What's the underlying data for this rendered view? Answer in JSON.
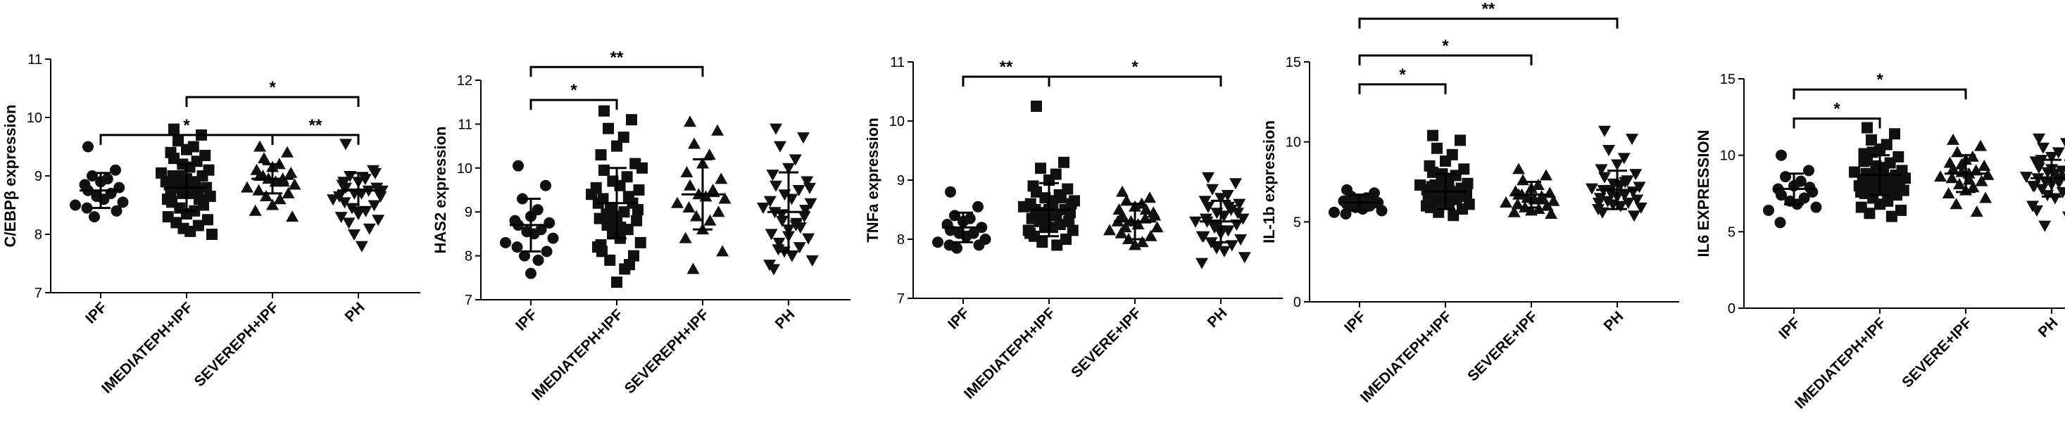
{
  "chart_data": [
    {
      "type": "scatter",
      "ylabel": "C/EBPβ expression",
      "ylim": [
        7,
        11
      ],
      "yticks": [
        7,
        8,
        9,
        10,
        11
      ],
      "categories": [
        "IPF",
        "IMEDIATEPH+IPF",
        "SEVEREPH+IPF",
        "PH"
      ],
      "marker_shapes": [
        "circle",
        "square",
        "triangle-up",
        "triangle-down"
      ],
      "series": [
        {
          "values": [
            9.5,
            9.1,
            9.0,
            8.95,
            8.9,
            8.85,
            8.8,
            8.75,
            8.7,
            8.65,
            8.6,
            8.55,
            8.5,
            8.45,
            8.4,
            8.3
          ]
        },
        {
          "values": [
            9.8,
            9.7,
            9.6,
            9.5,
            9.45,
            9.4,
            9.35,
            9.3,
            9.25,
            9.2,
            9.15,
            9.1,
            9.05,
            9.0,
            9.0,
            8.95,
            8.9,
            8.9,
            8.85,
            8.8,
            8.8,
            8.75,
            8.7,
            8.7,
            8.65,
            8.6,
            8.55,
            8.5,
            8.45,
            8.4,
            8.35,
            8.3,
            8.25,
            8.2,
            8.15,
            8.1,
            8.05,
            8.0,
            8.9,
            8.7,
            8.6,
            9.0,
            8.85,
            8.95
          ]
        },
        {
          "values": [
            9.5,
            9.4,
            9.3,
            9.2,
            9.15,
            9.1,
            9.05,
            9.0,
            8.95,
            8.95,
            8.9,
            8.85,
            8.8,
            8.75,
            8.7,
            8.65,
            8.6,
            8.5,
            8.4,
            8.3,
            9.0,
            8.9
          ]
        },
        {
          "values": [
            9.55,
            9.1,
            9.0,
            8.95,
            8.9,
            8.85,
            8.8,
            8.8,
            8.75,
            8.7,
            8.7,
            8.65,
            8.6,
            8.55,
            8.5,
            8.45,
            8.4,
            8.35,
            8.3,
            8.25,
            8.2,
            8.1,
            8.0,
            7.8,
            8.75,
            8.65,
            8.9,
            9.05
          ]
        }
      ],
      "mean": [
        8.75,
        8.8,
        8.95,
        8.75
      ],
      "sd": [
        0.3,
        0.4,
        0.25,
        0.3
      ],
      "significance": [
        {
          "from": 0,
          "to": 2,
          "label": "*",
          "y": 9.7
        },
        {
          "from": 2,
          "to": 3,
          "label": "**",
          "y": 9.7
        },
        {
          "from": 1,
          "to": 3,
          "label": "*",
          "y": 10.35
        }
      ]
    },
    {
      "type": "scatter",
      "ylabel": "HAS2 expression",
      "ylim": [
        7,
        12
      ],
      "yticks": [
        7,
        8,
        9,
        10,
        11,
        12
      ],
      "categories": [
        "IPF",
        "IMEDIATEPH+IPF",
        "SEVEREPH+IPF",
        "PH"
      ],
      "marker_shapes": [
        "circle",
        "square",
        "triangle-up",
        "triangle-down"
      ],
      "series": [
        {
          "values": [
            10.05,
            9.6,
            9.3,
            9.05,
            8.9,
            8.8,
            8.75,
            8.7,
            8.6,
            8.55,
            8.5,
            8.4,
            8.3,
            8.2,
            8.1,
            8.0,
            7.9,
            7.6
          ]
        },
        {
          "values": [
            11.3,
            11.1,
            10.9,
            10.7,
            10.5,
            10.3,
            10.1,
            9.95,
            9.8,
            9.7,
            9.6,
            9.5,
            9.4,
            9.3,
            9.2,
            9.1,
            9.0,
            8.9,
            8.85,
            8.8,
            8.7,
            8.6,
            8.5,
            8.4,
            8.3,
            8.2,
            8.1,
            8.0,
            7.9,
            7.7,
            7.4,
            9.2,
            9.05,
            8.95,
            9.35,
            8.75,
            8.65,
            10.0,
            9.55,
            8.25,
            7.8
          ]
        },
        {
          "values": [
            11.05,
            10.85,
            10.55,
            10.3,
            10.1,
            9.9,
            9.75,
            9.6,
            9.5,
            9.4,
            9.35,
            9.3,
            9.2,
            9.1,
            9.0,
            8.9,
            8.8,
            8.6,
            8.4,
            8.1,
            7.7,
            9.45
          ]
        },
        {
          "values": [
            10.9,
            10.7,
            10.5,
            10.2,
            10.0,
            9.85,
            9.7,
            9.6,
            9.5,
            9.4,
            9.3,
            9.2,
            9.1,
            9.0,
            8.9,
            8.8,
            8.7,
            8.6,
            8.5,
            8.4,
            8.3,
            8.2,
            8.1,
            8.0,
            7.9,
            7.8,
            7.7,
            9.05,
            8.95,
            8.75,
            8.45,
            9.25,
            9.55,
            8.15,
            8.65
          ]
        }
      ],
      "mean": [
        8.7,
        9.2,
        9.4,
        9.0
      ],
      "sd": [
        0.6,
        0.8,
        0.8,
        0.9
      ],
      "significance": [
        {
          "from": 0,
          "to": 1,
          "label": "*",
          "y": 11.55
        },
        {
          "from": 0,
          "to": 2,
          "label": "**",
          "y": 12.3
        }
      ]
    },
    {
      "type": "scatter",
      "ylabel": "TNFa expression",
      "ylim": [
        7,
        11
      ],
      "yticks": [
        7,
        8,
        9,
        10,
        11
      ],
      "categories": [
        "IPF",
        "IMEDIATEPH+IPF",
        "SEVERE+IPF",
        "PH"
      ],
      "marker_shapes": [
        "circle",
        "square",
        "triangle-up",
        "triangle-down"
      ],
      "series": [
        {
          "values": [
            8.8,
            8.55,
            8.4,
            8.35,
            8.3,
            8.25,
            8.2,
            8.15,
            8.1,
            8.1,
            8.05,
            8.0,
            7.95,
            7.9,
            7.9,
            7.85
          ]
        },
        {
          "values": [
            10.25,
            9.3,
            9.2,
            9.1,
            9.0,
            8.9,
            8.85,
            8.8,
            8.75,
            8.7,
            8.65,
            8.6,
            8.55,
            8.5,
            8.5,
            8.45,
            8.4,
            8.4,
            8.35,
            8.3,
            8.3,
            8.25,
            8.2,
            8.2,
            8.15,
            8.1,
            8.05,
            8.0,
            7.95,
            7.9,
            8.5,
            8.6,
            8.45,
            8.35,
            8.7,
            8.25,
            8.55,
            8.65,
            8.15
          ]
        },
        {
          "values": [
            8.8,
            8.7,
            8.65,
            8.6,
            8.55,
            8.5,
            8.45,
            8.4,
            8.35,
            8.3,
            8.25,
            8.2,
            8.15,
            8.1,
            8.05,
            8.0,
            7.95,
            7.9,
            8.3,
            8.4,
            8.2,
            8.5
          ]
        },
        {
          "values": [
            9.05,
            8.95,
            8.85,
            8.75,
            8.7,
            8.65,
            8.6,
            8.55,
            8.5,
            8.45,
            8.4,
            8.35,
            8.3,
            8.3,
            8.25,
            8.2,
            8.15,
            8.1,
            8.05,
            8.0,
            7.95,
            7.9,
            7.85,
            7.8,
            7.7,
            7.6,
            8.35,
            8.45,
            8.25,
            8.55,
            8.15,
            8.05
          ]
        }
      ],
      "mean": [
        8.2,
        8.5,
        8.3,
        8.3
      ],
      "sd": [
        0.25,
        0.45,
        0.3,
        0.35
      ],
      "significance": [
        {
          "from": 0,
          "to": 1,
          "label": "**",
          "y": 10.75
        },
        {
          "from": 1,
          "to": 3,
          "label": "*",
          "y": 10.75
        }
      ]
    },
    {
      "type": "scatter",
      "ylabel": "IL-1b expression",
      "ylim": [
        0,
        15
      ],
      "yticks": [
        0,
        5,
        10,
        15
      ],
      "categories": [
        "IPF",
        "IMEDIATEPH+IPF",
        "SEVERE+IPF",
        "PH"
      ],
      "marker_shapes": [
        "circle",
        "square",
        "triangle-up",
        "triangle-down"
      ],
      "series": [
        {
          "values": [
            7.0,
            6.8,
            6.6,
            6.5,
            6.4,
            6.3,
            6.2,
            6.1,
            6.0,
            5.9,
            5.8,
            5.7,
            5.6,
            5.5,
            6.2,
            6.0
          ]
        },
        {
          "values": [
            10.4,
            10.1,
            9.6,
            9.2,
            8.8,
            8.5,
            8.3,
            8.1,
            7.9,
            7.7,
            7.5,
            7.4,
            7.3,
            7.2,
            7.1,
            7.0,
            6.9,
            6.8,
            6.7,
            6.6,
            6.5,
            6.4,
            6.3,
            6.2,
            6.1,
            6.0,
            5.9,
            5.8,
            5.6,
            5.4,
            7.6,
            7.0,
            6.8,
            7.3,
            6.6,
            8.0,
            6.4
          ]
        },
        {
          "values": [
            8.3,
            7.9,
            7.6,
            7.3,
            7.1,
            6.9,
            6.8,
            6.7,
            6.6,
            6.5,
            6.4,
            6.3,
            6.2,
            6.1,
            6.0,
            5.9,
            5.8,
            5.7,
            5.6,
            5.5,
            6.7,
            6.4
          ]
        },
        {
          "values": [
            10.7,
            10.2,
            9.5,
            9.0,
            8.6,
            8.3,
            8.0,
            7.8,
            7.6,
            7.4,
            7.3,
            7.2,
            7.1,
            7.0,
            6.9,
            6.8,
            6.7,
            6.6,
            6.5,
            6.4,
            6.3,
            6.2,
            6.1,
            6.0,
            5.9,
            5.8,
            5.6,
            5.4,
            7.0,
            7.5,
            6.6,
            6.2
          ]
        }
      ],
      "mean": [
        6.2,
        6.9,
        6.7,
        7.0
      ],
      "sd": [
        0.5,
        1.1,
        0.8,
        1.2
      ],
      "significance": [
        {
          "from": 0,
          "to": 1,
          "label": "*",
          "y": 13.6
        },
        {
          "from": 0,
          "to": 2,
          "label": "*",
          "y": 15.4
        },
        {
          "from": 0,
          "to": 3,
          "label": "**",
          "y": 17.7
        }
      ]
    },
    {
      "type": "scatter",
      "ylabel": "IL6 EXPRESSION",
      "ylim": [
        0,
        15
      ],
      "yticks": [
        0,
        5,
        10,
        15
      ],
      "categories": [
        "IPF",
        "IMEDIATEPH+IPF",
        "SEVERE+IPF",
        "PH"
      ],
      "marker_shapes": [
        "circle",
        "square",
        "triangle-up",
        "triangle-down"
      ],
      "series": [
        {
          "values": [
            10.0,
            9.0,
            8.6,
            8.3,
            8.0,
            7.8,
            7.6,
            7.4,
            7.2,
            7.0,
            6.8,
            6.6,
            6.4,
            5.6,
            7.9
          ]
        },
        {
          "values": [
            11.8,
            11.4,
            11.0,
            10.7,
            10.4,
            10.1,
            9.9,
            9.7,
            9.5,
            9.3,
            9.1,
            9.0,
            8.9,
            8.8,
            8.7,
            8.6,
            8.5,
            8.4,
            8.3,
            8.2,
            8.1,
            8.0,
            7.9,
            7.8,
            7.7,
            7.6,
            7.5,
            7.4,
            7.2,
            7.0,
            6.8,
            6.6,
            6.4,
            6.2,
            6.0,
            8.8,
            9.2,
            8.5,
            8.0,
            9.6,
            7.6,
            10.2
          ]
        },
        {
          "values": [
            11.0,
            10.6,
            10.2,
            9.9,
            9.7,
            9.5,
            9.3,
            9.1,
            9.0,
            8.9,
            8.8,
            8.7,
            8.6,
            8.5,
            8.3,
            8.1,
            7.9,
            7.7,
            7.5,
            7.2,
            6.8,
            6.3,
            9.4,
            8.4
          ]
        },
        {
          "values": [
            11.1,
            10.8,
            10.5,
            10.2,
            9.9,
            9.6,
            9.4,
            9.2,
            9.0,
            8.9,
            8.8,
            8.7,
            8.6,
            8.5,
            8.4,
            8.3,
            8.2,
            8.1,
            8.0,
            7.9,
            7.8,
            7.6,
            7.4,
            7.2,
            7.0,
            6.7,
            6.4,
            6.0,
            5.4,
            8.5,
            9.1,
            8.0,
            7.7,
            9.7
          ]
        }
      ],
      "mean": [
        7.8,
        8.7,
        8.8,
        8.5
      ],
      "sd": [
        1.0,
        1.3,
        1.2,
        1.2
      ],
      "significance": [
        {
          "from": 0,
          "to": 1,
          "label": "*",
          "y": 12.4
        },
        {
          "from": 0,
          "to": 2,
          "label": "*",
          "y": 14.3
        }
      ]
    }
  ]
}
